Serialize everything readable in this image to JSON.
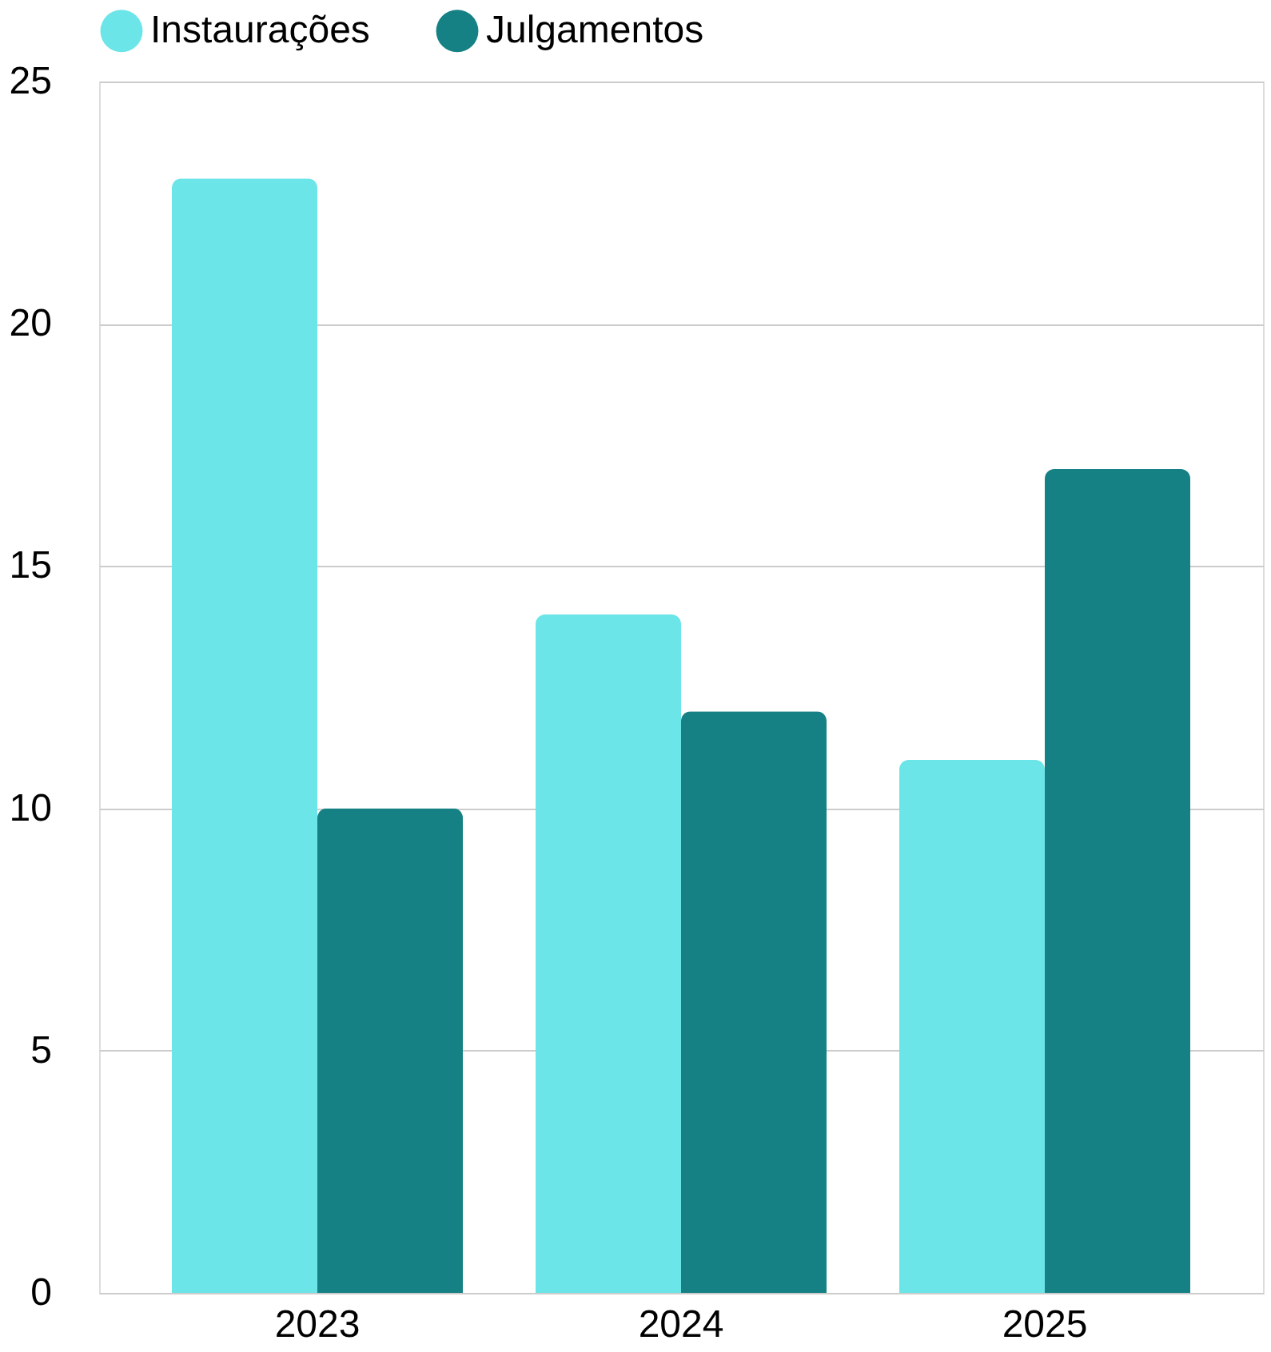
{
  "chart_data": {
    "type": "bar",
    "categories": [
      "2023",
      "2024",
      "2025"
    ],
    "series": [
      {
        "name": "Instaurações",
        "color": "#6ce5e8",
        "values": [
          23,
          14,
          11
        ]
      },
      {
        "name": "Julgamentos",
        "color": "#158184",
        "values": [
          10,
          12,
          17
        ]
      }
    ],
    "ylim": [
      0,
      25
    ],
    "yticks": [
      0,
      5,
      10,
      15,
      20,
      25
    ],
    "grid": "y",
    "legend": "top"
  }
}
